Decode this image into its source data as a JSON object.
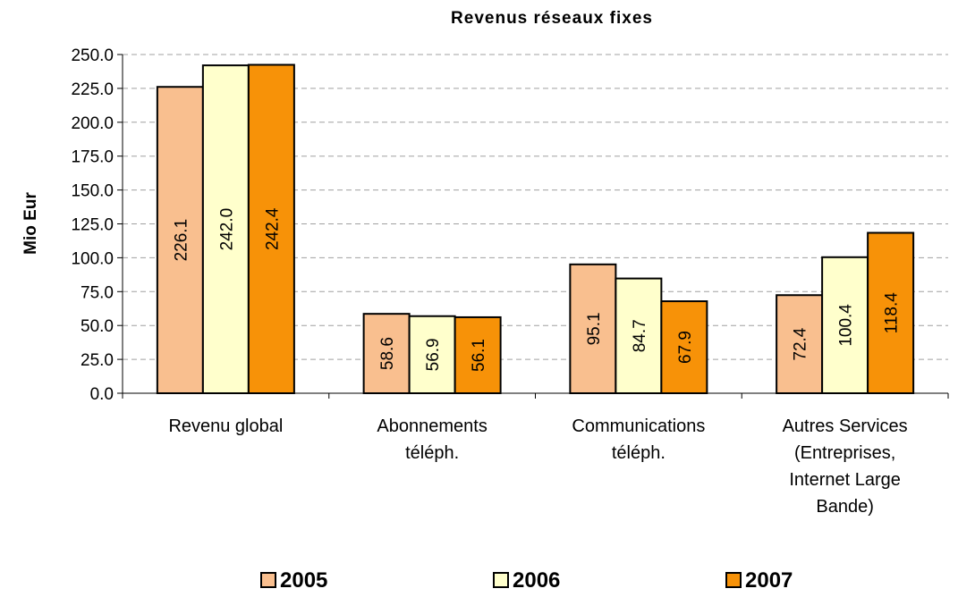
{
  "chart_data": {
    "type": "bar",
    "title": "Revenus réseaux fixes",
    "ylabel": "Mio Eur",
    "xlabel": "",
    "ylim": [
      0,
      250
    ],
    "ytick_step": 25,
    "yticks": [
      "0.0",
      "25.0",
      "50.0",
      "75.0",
      "100.0",
      "125.0",
      "150.0",
      "175.0",
      "200.0",
      "225.0",
      "250.0"
    ],
    "grid": true,
    "legend_position": "bottom",
    "categories": [
      [
        "Revenu global"
      ],
      [
        "Abonnements",
        "téléph."
      ],
      [
        "Communications",
        "téléph."
      ],
      [
        "Autres Services",
        "(Entreprises,",
        "Internet Large",
        "Bande)"
      ]
    ],
    "series": [
      {
        "name": "2005",
        "color": "#f9bf8f",
        "values": [
          226.1,
          58.6,
          95.1,
          72.4
        ],
        "labels": [
          "226.1",
          "58.6",
          "95.1",
          "72.4"
        ]
      },
      {
        "name": "2006",
        "color": "#ffffcc",
        "values": [
          242.0,
          56.9,
          84.7,
          100.4
        ],
        "labels": [
          "242.0",
          "56.9",
          "84.7",
          "100.4"
        ]
      },
      {
        "name": "2007",
        "color": "#f79208",
        "values": [
          242.4,
          56.1,
          67.9,
          118.4
        ],
        "labels": [
          "242.4",
          "56.1",
          "67.9",
          "118.4"
        ]
      }
    ]
  }
}
